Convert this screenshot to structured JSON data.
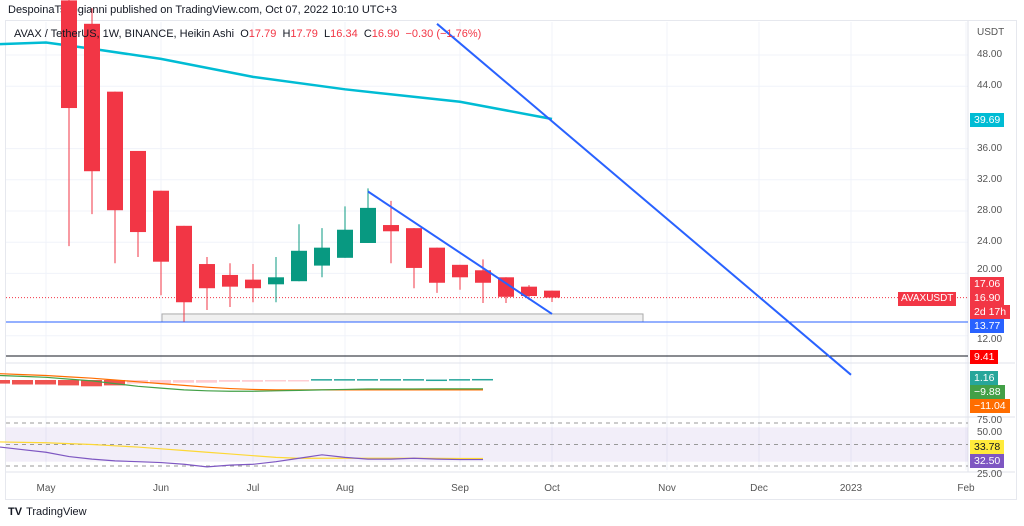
{
  "publisher_line": "DespoinaTsirogianni published on TradingView.com, Oct 07, 2022 10:10 UTC+3",
  "legend": {
    "symbol": "AVAX / TetherUS, 1W, BINANCE, Heikin Ashi",
    "o_label": "O",
    "o": "17.79",
    "h_label": "H",
    "h": "17.79",
    "l_label": "L",
    "l": "16.34",
    "c_label": "C",
    "c": "16.90",
    "change": "−0.30 (−1.76%)"
  },
  "currency": "USDT",
  "brand": "TradingView",
  "colors": {
    "up": "#089981",
    "down": "#f23645",
    "ma": "#00bcd4",
    "trend": "#2962ff",
    "rsi": "#7e57c2",
    "rsi_ma": "#fdd835"
  },
  "price_labels": [
    {
      "text": "39.69",
      "bg": "#00bcd4"
    },
    {
      "text": "17.06",
      "bg": "#f23645"
    },
    {
      "text": "16.90",
      "bg": "#f23645"
    },
    {
      "text": "2d 17h",
      "bg": "#f23645"
    },
    {
      "text": "13.77",
      "bg": "#2962ff"
    },
    {
      "text": "9.41",
      "bg": "#ff0000"
    },
    {
      "text": "1.16",
      "bg": "#26a69a"
    },
    {
      "text": "−9.88",
      "bg": "#43a047"
    },
    {
      "text": "−11.04",
      "bg": "#ff6d00"
    },
    {
      "text": "33.78",
      "bg": "#ffeb3b"
    },
    {
      "text": "32.50",
      "bg": "#7e57c2"
    }
  ],
  "symbol_tag": "AVAXUSDT",
  "chart_data": [
    {
      "type": "candlestick",
      "title": "AVAX / TetherUS, 1W, BINANCE, Heikin Ashi",
      "ylabel": "USDT",
      "yticks": [
        "48.00",
        "44.00",
        "36.00",
        "32.00",
        "28.00",
        "24.00",
        "20.00",
        "12.00"
      ],
      "ytick_values": [
        48,
        44,
        36,
        32,
        28,
        24,
        20,
        12
      ],
      "ylim": [
        8,
        52
      ],
      "xticks": [
        {
          "label": "May",
          "date": "2022-05-02"
        },
        {
          "label": "Jun",
          "date": "2022-06-06"
        },
        {
          "label": "Jul",
          "date": "2022-07-04"
        },
        {
          "label": "Aug",
          "date": "2022-08-01"
        },
        {
          "label": "Sep",
          "date": "2022-09-05"
        },
        {
          "label": "Oct",
          "date": "2022-10-03"
        },
        {
          "label": "Nov",
          "date": "2022-11-07"
        },
        {
          "label": "Dec",
          "date": "2022-12-05"
        },
        {
          "label": "2023",
          "date": "2023-01-02"
        },
        {
          "label": "Feb",
          "date": "2023-02-06"
        }
      ],
      "first_week": "2022-05-09",
      "candles": [
        [
          55,
          60,
          23.5,
          41.2
        ],
        [
          52,
          54,
          27.6,
          33.1
        ],
        [
          43.3,
          43.3,
          21.3,
          28.1
        ],
        [
          35.7,
          35.7,
          22.1,
          25.3
        ],
        [
          30.6,
          30.6,
          17.2,
          21.5
        ],
        [
          26.1,
          26.1,
          13.8,
          16.3
        ],
        [
          21.2,
          22.1,
          15.3,
          18.1
        ],
        [
          19.8,
          21.3,
          15.7,
          18.3
        ],
        [
          19.2,
          21.2,
          16.3,
          18.1
        ],
        [
          18.6,
          22.1,
          16.3,
          19.5
        ],
        [
          19.0,
          26.3,
          19.0,
          22.9
        ],
        [
          21.0,
          25.8,
          19.5,
          23.3
        ],
        [
          22.0,
          28.6,
          22.0,
          25.6
        ],
        [
          23.9,
          30.9,
          23.9,
          28.4
        ],
        [
          26.2,
          29.3,
          21.3,
          25.4
        ],
        [
          25.8,
          25.8,
          18.1,
          20.7
        ],
        [
          23.3,
          23.3,
          17.5,
          18.8
        ],
        [
          21.1,
          21.1,
          17.9,
          19.5
        ],
        [
          20.4,
          21.8,
          16.2,
          18.8
        ],
        [
          19.5,
          19.5,
          16.2,
          17.0
        ],
        [
          18.3,
          18.5,
          16.6,
          17.1
        ],
        [
          17.79,
          17.79,
          16.34,
          16.9
        ]
      ],
      "candle_fields": [
        "open",
        "high",
        "low",
        "close"
      ],
      "moving_average": {
        "last": 39.69,
        "points": [
          [
            -3,
            49.4
          ],
          [
            -1,
            49.6
          ],
          [
            1,
            48.8
          ],
          [
            4,
            47.5
          ],
          [
            8,
            45.2
          ],
          [
            12,
            43.6
          ],
          [
            17,
            42.0
          ],
          [
            21,
            39.8
          ]
        ]
      },
      "trendlines": [
        {
          "from": [
            16,
            52
          ],
          "to": [
            34,
            7
          ]
        },
        {
          "from": [
            13,
            30.5
          ],
          "to": [
            21,
            14.8
          ]
        }
      ],
      "horizontal_levels": [
        {
          "value": 13.77,
          "color": "#2962ff"
        },
        {
          "value": 9.41,
          "color": "#ff0000"
        }
      ],
      "support_zone": [
        13.77,
        14.8
      ]
    },
    {
      "type": "macd",
      "histogram": [
        -4,
        -5,
        -5,
        -6,
        -7,
        -6,
        -4,
        -4,
        -3,
        -3,
        -2,
        -2,
        -1,
        -0.5,
        1,
        1,
        1,
        1,
        1,
        0.5,
        1,
        1.16
      ],
      "macd": [
        5,
        4,
        3,
        1,
        -1,
        -4,
        -7,
        -9,
        -11,
        -12,
        -12.5,
        -12.5,
        -12,
        -11.5,
        -11,
        -10.5,
        -10,
        -10,
        -10,
        -9.9,
        -9.9,
        -9.88
      ],
      "signal": [
        7,
        6,
        5,
        3.5,
        2,
        0,
        -2,
        -4,
        -6,
        -8,
        -9.5,
        -10.5,
        -11,
        -11,
        -11,
        -11,
        -11,
        -11,
        -11,
        -11,
        -11,
        -11.04
      ]
    },
    {
      "type": "line",
      "yticks": [
        "75.00",
        "50.00",
        "25.00"
      ],
      "band": [
        30,
        70
      ],
      "rsi": [
        47,
        44,
        41,
        36,
        33,
        31,
        30,
        29,
        27,
        24,
        26,
        27,
        30,
        34,
        38,
        35,
        33,
        33,
        34,
        33,
        32.5,
        32.5
      ],
      "rsi_ma": [
        53,
        52.5,
        52,
        51,
        50,
        48.5,
        47,
        45,
        43,
        41,
        39,
        37,
        35,
        34,
        34,
        34,
        34,
        34,
        34,
        33.9,
        33.8,
        33.78
      ]
    }
  ]
}
